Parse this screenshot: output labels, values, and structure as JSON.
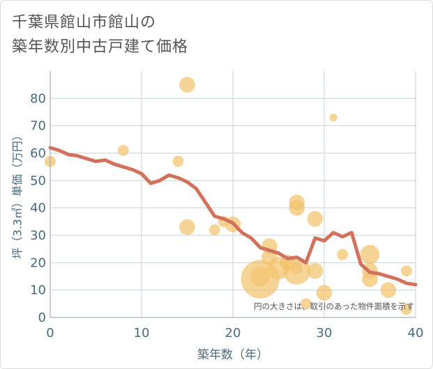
{
  "title_lines": [
    "千葉県館山市館山の",
    "築年数別中古戸建て価格"
  ],
  "chart_data": {
    "type": "scatter",
    "title": "千葉県館山市館山の築年数別中古戸建て価格",
    "xlabel": "築年数（年）",
    "ylabel": "坪（3.3㎡）単価（万円）",
    "xlim": [
      0,
      40
    ],
    "ylim": [
      0,
      90
    ],
    "xticks": [
      "0",
      "10",
      "20",
      "30",
      "40"
    ],
    "yticks": [
      "0",
      "10",
      "20",
      "30",
      "40",
      "50",
      "60",
      "70",
      "80"
    ],
    "grid": true,
    "note": "円の大きさは、取引のあった物件面積を示す",
    "colors": {
      "bubble": "#f3c46e",
      "line": "#d2715c",
      "axis": "#4a6a80",
      "grid": "#c5d2de"
    },
    "scatter_series": [
      {
        "x": 0,
        "y": 57,
        "size": 1
      },
      {
        "x": 8,
        "y": 61,
        "size": 1
      },
      {
        "x": 14,
        "y": 57,
        "size": 1
      },
      {
        "x": 15,
        "y": 85,
        "size": 2
      },
      {
        "x": 15,
        "y": 33,
        "size": 2
      },
      {
        "x": 18,
        "y": 32,
        "size": 1
      },
      {
        "x": 19,
        "y": 35,
        "size": 1
      },
      {
        "x": 20,
        "y": 34,
        "size": 2
      },
      {
        "x": 23,
        "y": 14,
        "size": 12
      },
      {
        "x": 23,
        "y": 15,
        "size": 3
      },
      {
        "x": 24,
        "y": 26,
        "size": 2
      },
      {
        "x": 24,
        "y": 22,
        "size": 2
      },
      {
        "x": 25,
        "y": 18,
        "size": 4
      },
      {
        "x": 26,
        "y": 20,
        "size": 2
      },
      {
        "x": 27,
        "y": 42,
        "size": 2
      },
      {
        "x": 27,
        "y": 40,
        "size": 2
      },
      {
        "x": 27,
        "y": 17,
        "size": 6
      },
      {
        "x": 27,
        "y": 18,
        "size": 1
      },
      {
        "x": 28,
        "y": 5,
        "size": 1
      },
      {
        "x": 29,
        "y": 36,
        "size": 2
      },
      {
        "x": 29,
        "y": 17,
        "size": 2
      },
      {
        "x": 30,
        "y": 9,
        "size": 2
      },
      {
        "x": 31,
        "y": 73,
        "size": 0.5
      },
      {
        "x": 32,
        "y": 23,
        "size": 1
      },
      {
        "x": 35,
        "y": 23,
        "size": 3
      },
      {
        "x": 35,
        "y": 17,
        "size": 2
      },
      {
        "x": 35,
        "y": 14,
        "size": 2
      },
      {
        "x": 37,
        "y": 10,
        "size": 2
      },
      {
        "x": 39,
        "y": 17,
        "size": 1
      },
      {
        "x": 39,
        "y": 3,
        "size": 1
      }
    ],
    "line_series": {
      "x": [
        0,
        1,
        2,
        3,
        4,
        5,
        6,
        7,
        8,
        9,
        10,
        11,
        12,
        13,
        14,
        15,
        16,
        17,
        18,
        19,
        20,
        21,
        22,
        23,
        24,
        25,
        26,
        27,
        28,
        29,
        30,
        31,
        32,
        33,
        34,
        35,
        36,
        37,
        38,
        39,
        40
      ],
      "y": [
        62,
        61,
        59.5,
        59,
        58,
        57,
        57.5,
        56,
        55,
        54,
        52.5,
        49,
        50,
        52,
        51,
        49.5,
        47,
        42,
        37,
        36,
        34.5,
        31,
        29,
        25.5,
        24.5,
        23.5,
        21.5,
        22,
        20,
        29,
        28,
        31,
        29.5,
        31,
        19.5,
        16.5,
        16,
        15,
        14,
        12.5,
        12
      ]
    }
  }
}
